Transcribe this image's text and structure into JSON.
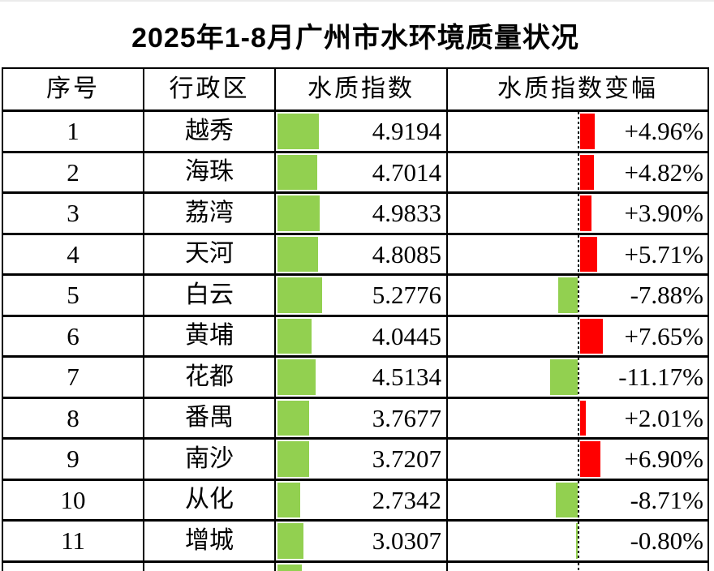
{
  "title": "2025年1-8月广州市水环境质量状况",
  "table": {
    "headers": [
      "序号",
      "行政区",
      "水质指数",
      "水质指数变幅"
    ],
    "rows": [
      {
        "no": "1",
        "district": "越秀",
        "index": "4.9194",
        "index_num": 4.9194,
        "change": "+4.96%",
        "change_num": 4.96
      },
      {
        "no": "2",
        "district": "海珠",
        "index": "4.7014",
        "index_num": 4.7014,
        "change": "+4.82%",
        "change_num": 4.82
      },
      {
        "no": "3",
        "district": "荔湾",
        "index": "4.9833",
        "index_num": 4.9833,
        "change": "+3.90%",
        "change_num": 3.9
      },
      {
        "no": "4",
        "district": "天河",
        "index": "4.8085",
        "index_num": 4.8085,
        "change": "+5.71%",
        "change_num": 5.71
      },
      {
        "no": "5",
        "district": "白云",
        "index": "5.2776",
        "index_num": 5.2776,
        "change": "-7.88%",
        "change_num": -7.88
      },
      {
        "no": "6",
        "district": "黄埔",
        "index": "4.0445",
        "index_num": 4.0445,
        "change": "+7.65%",
        "change_num": 7.65
      },
      {
        "no": "7",
        "district": "花都",
        "index": "4.5134",
        "index_num": 4.5134,
        "change": "-11.17%",
        "change_num": -11.17
      },
      {
        "no": "8",
        "district": "番禺",
        "index": "3.7677",
        "index_num": 3.7677,
        "change": "+2.01%",
        "change_num": 2.01
      },
      {
        "no": "9",
        "district": "南沙",
        "index": "3.7207",
        "index_num": 3.7207,
        "change": "+6.90%",
        "change_num": 6.9
      },
      {
        "no": "10",
        "district": "从化",
        "index": "2.7342",
        "index_num": 2.7342,
        "change": "-8.71%",
        "change_num": -8.71
      },
      {
        "no": "11",
        "district": "增城",
        "index": "3.0307",
        "index_num": 3.0307,
        "change": "-0.80%",
        "change_num": -0.8
      }
    ]
  },
  "colors": {
    "index_bar": "#92D050",
    "increase_bar": "#FF0000",
    "decrease_bar": "#92D050",
    "grid": "#000000"
  },
  "chart_data": {
    "type": "table",
    "title": "2025年1-8月广州市水环境质量状况",
    "columns": [
      "序号",
      "行政区",
      "水质指数",
      "水质指数变幅"
    ],
    "rows": [
      [
        1,
        "越秀",
        4.9194,
        "+4.96%"
      ],
      [
        2,
        "海珠",
        4.7014,
        "+4.82%"
      ],
      [
        3,
        "荔湾",
        4.9833,
        "+3.90%"
      ],
      [
        4,
        "天河",
        4.8085,
        "+5.71%"
      ],
      [
        5,
        "白云",
        5.2776,
        "-7.88%"
      ],
      [
        6,
        "黄埔",
        4.0445,
        "+7.65%"
      ],
      [
        7,
        "花都",
        4.5134,
        "-11.17%"
      ],
      [
        8,
        "番禺",
        3.7677,
        "+2.01%"
      ],
      [
        9,
        "南沙",
        3.7207,
        "+6.90%"
      ],
      [
        10,
        "从化",
        2.7342,
        "-8.71%"
      ],
      [
        11,
        "增城",
        3.0307,
        "-0.80%"
      ]
    ],
    "embedded_data_bars": {
      "水质指数": {
        "type": "bar",
        "color": "#92D050",
        "min": 0,
        "values": [
          4.9194,
          4.7014,
          4.9833,
          4.8085,
          5.2776,
          4.0445,
          4.5134,
          3.7677,
          3.7207,
          2.7342,
          3.0307
        ]
      },
      "水质指数变幅": {
        "type": "bar",
        "positive_color": "#FF0000",
        "negative_color": "#92D050",
        "zero_axis": "dashed vertical line at cell midpoint",
        "values_pct": [
          4.96,
          4.82,
          3.9,
          5.71,
          -7.88,
          7.65,
          -11.17,
          2.01,
          6.9,
          -8.71,
          -0.8
        ]
      }
    }
  }
}
